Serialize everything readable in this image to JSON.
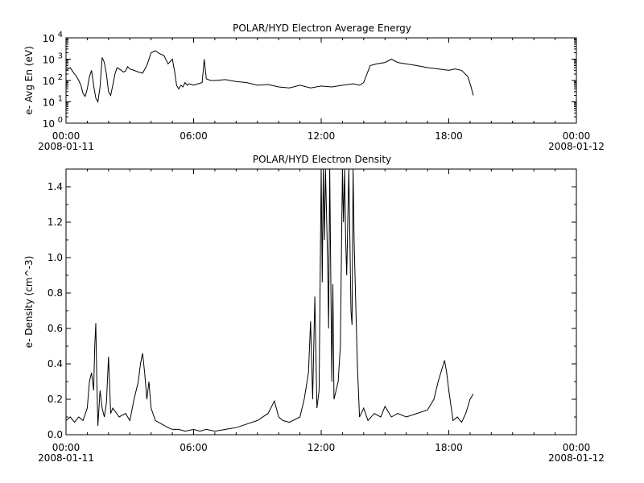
{
  "chart_data": [
    {
      "type": "line",
      "title": "POLAR/HYD  Electron Average Energy",
      "ylabel": "e- Avg En (eV)",
      "yscale": "log",
      "ylim": [
        1,
        10000
      ],
      "y_ticks": [
        {
          "value": 1,
          "base": "10",
          "exp": "0"
        },
        {
          "value": 10,
          "base": "10",
          "exp": "1"
        },
        {
          "value": 100,
          "base": "10",
          "exp": "2"
        },
        {
          "value": 1000,
          "base": "10",
          "exp": "3"
        },
        {
          "value": 10000,
          "base": "10",
          "exp": "4"
        }
      ],
      "xlim_hours": [
        0,
        24
      ],
      "x_ticks": [
        {
          "hour": 0,
          "label": "00:00",
          "date": "2008-01-11"
        },
        {
          "hour": 6,
          "label": "06:00",
          "date": ""
        },
        {
          "hour": 12,
          "label": "12:00",
          "date": ""
        },
        {
          "hour": 18,
          "label": "18:00",
          "date": ""
        },
        {
          "hour": 24,
          "label": "00:00",
          "date": "2008-01-12"
        }
      ],
      "series": [
        {
          "x_hours": [
            0.0,
            0.1,
            0.2,
            0.3,
            0.4,
            0.5,
            0.6,
            0.7,
            0.8,
            0.9,
            1.0,
            1.1,
            1.2,
            1.3,
            1.4,
            1.5,
            1.6,
            1.7,
            1.8,
            1.9,
            2.0,
            2.1,
            2.2,
            2.3,
            2.4,
            2.5,
            2.6,
            2.7,
            2.8,
            2.9,
            3.0,
            3.2,
            3.4,
            3.6,
            3.8,
            4.0,
            4.2,
            4.4,
            4.6,
            4.8,
            5.0,
            5.1,
            5.2,
            5.3,
            5.4,
            5.5,
            5.6,
            5.7,
            5.8,
            6.0,
            6.2,
            6.4,
            6.5,
            6.6,
            6.8,
            7.0,
            7.5,
            8.0,
            8.5,
            9.0,
            9.5,
            10.0,
            10.5,
            11.0,
            11.5,
            12.0,
            12.5,
            13.0,
            13.5,
            13.8,
            14.0,
            14.3,
            14.6,
            15.0,
            15.3,
            15.6,
            16.0,
            16.5,
            17.0,
            17.5,
            18.0,
            18.3,
            18.6,
            18.9,
            19.05,
            19.15
          ],
          "y": [
            300,
            350,
            400,
            280,
            200,
            150,
            100,
            60,
            25,
            18,
            40,
            150,
            300,
            60,
            15,
            10,
            50,
            1200,
            700,
            200,
            30,
            20,
            60,
            200,
            400,
            350,
            300,
            250,
            280,
            450,
            350,
            300,
            250,
            220,
            500,
            2000,
            2500,
            1800,
            1500,
            600,
            1000,
            300,
            60,
            40,
            60,
            50,
            80,
            60,
            70,
            60,
            70,
            80,
            1000,
            120,
            100,
            100,
            110,
            90,
            80,
            60,
            65,
            50,
            45,
            60,
            45,
            55,
            50,
            60,
            70,
            60,
            80,
            500,
            600,
            700,
            1000,
            700,
            600,
            500,
            400,
            350,
            300,
            350,
            300,
            150,
            50,
            20
          ]
        }
      ]
    },
    {
      "type": "line",
      "title": "POLAR/HYD  Electron Density",
      "ylabel": "e- Density (cm^-3)",
      "ylim": [
        0,
        1.5
      ],
      "y_ticks": [
        "0.0",
        "0.2",
        "0.4",
        "0.6",
        "0.8",
        "1.0",
        "1.2",
        "1.4"
      ],
      "xlim_hours": [
        0,
        24
      ],
      "x_ticks": [
        {
          "hour": 0,
          "label": "00:00",
          "date": "2008-01-11"
        },
        {
          "hour": 6,
          "label": "06:00",
          "date": ""
        },
        {
          "hour": 12,
          "label": "12:00",
          "date": ""
        },
        {
          "hour": 18,
          "label": "18:00",
          "date": ""
        },
        {
          "hour": 24,
          "label": "00:00",
          "date": "2008-01-12"
        }
      ],
      "series": [
        {
          "x_hours": [
            0.0,
            0.2,
            0.4,
            0.6,
            0.8,
            1.0,
            1.1,
            1.2,
            1.3,
            1.35,
            1.4,
            1.45,
            1.5,
            1.6,
            1.7,
            1.8,
            1.9,
            2.0,
            2.1,
            2.2,
            2.5,
            2.8,
            3.0,
            3.2,
            3.4,
            3.5,
            3.6,
            3.7,
            3.8,
            3.9,
            4.0,
            4.2,
            4.5,
            4.8,
            5.0,
            5.3,
            5.6,
            6.0,
            6.3,
            6.6,
            7.0,
            7.5,
            8.0,
            8.5,
            9.0,
            9.5,
            9.8,
            10.0,
            10.2,
            10.5,
            11.0,
            11.2,
            11.4,
            11.5,
            11.6,
            11.7,
            11.8,
            11.9,
            12.0,
            12.05,
            12.1,
            12.15,
            12.2,
            12.3,
            12.35,
            12.4,
            12.5,
            12.55,
            12.6,
            12.7,
            12.8,
            12.9,
            13.0,
            13.05,
            13.1,
            13.15,
            13.2,
            13.3,
            13.4,
            13.45,
            13.5,
            13.55,
            13.6,
            13.7,
            13.8,
            14.0,
            14.2,
            14.5,
            14.8,
            15.0,
            15.3,
            15.6,
            16.0,
            16.5,
            17.0,
            17.3,
            17.5,
            17.7,
            17.8,
            17.9,
            18.0,
            18.2,
            18.4,
            18.6,
            18.8,
            19.0,
            19.15
          ],
          "y": [
            0.08,
            0.1,
            0.07,
            0.1,
            0.08,
            0.15,
            0.3,
            0.35,
            0.25,
            0.5,
            0.63,
            0.3,
            0.05,
            0.25,
            0.15,
            0.1,
            0.18,
            0.44,
            0.12,
            0.15,
            0.1,
            0.12,
            0.08,
            0.2,
            0.3,
            0.4,
            0.46,
            0.35,
            0.2,
            0.3,
            0.15,
            0.08,
            0.06,
            0.04,
            0.03,
            0.03,
            0.02,
            0.03,
            0.02,
            0.03,
            0.02,
            0.03,
            0.04,
            0.06,
            0.08,
            0.12,
            0.19,
            0.1,
            0.08,
            0.07,
            0.1,
            0.2,
            0.35,
            0.64,
            0.2,
            0.78,
            0.15,
            0.25,
            1.5,
            0.86,
            1.5,
            1.1,
            1.5,
            1.0,
            0.6,
            1.5,
            0.3,
            0.85,
            0.2,
            0.25,
            0.3,
            0.5,
            1.5,
            1.2,
            1.5,
            1.1,
            0.9,
            1.5,
            0.7,
            0.62,
            1.5,
            1.1,
            0.85,
            0.4,
            0.1,
            0.15,
            0.08,
            0.12,
            0.1,
            0.16,
            0.1,
            0.12,
            0.1,
            0.12,
            0.14,
            0.2,
            0.3,
            0.38,
            0.42,
            0.35,
            0.25,
            0.08,
            0.1,
            0.07,
            0.12,
            0.2,
            0.23
          ]
        }
      ]
    }
  ]
}
